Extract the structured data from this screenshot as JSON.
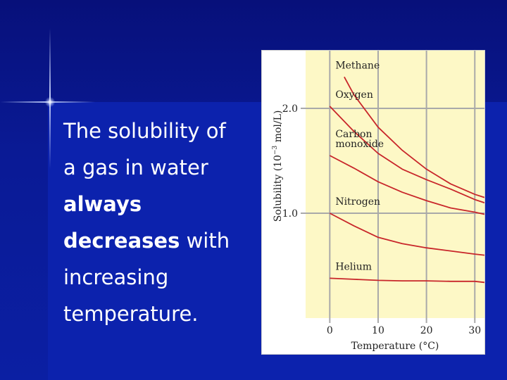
{
  "slide": {
    "text": {
      "line1": "The solubility of",
      "line2": "a gas in water",
      "line3": "always",
      "line4_bold": "decreases",
      "line4_rest": " with",
      "line5": "increasing",
      "line6": "temperature."
    }
  },
  "chart_data": {
    "type": "line",
    "xlabel": "Temperature (°C)",
    "ylabel_prefix": "Solubility (10",
    "ylabel_exp": "−3",
    "ylabel_suffix": " mol/L)",
    "xlim": [
      -5,
      32
    ],
    "ylim": [
      0,
      2.55
    ],
    "xticks": [
      0,
      10,
      20,
      30
    ],
    "yticks": [
      1.0,
      2.0
    ],
    "ytick_labels": [
      "1.0",
      "2.0"
    ],
    "grid": true,
    "colors": {
      "plot_bg": "#fdf8c6",
      "grid": "#a9a9a9",
      "curve": "#c8262a",
      "text": "#222222"
    },
    "series": [
      {
        "name": "Methane",
        "x": [
          3,
          5,
          10,
          15,
          20,
          25,
          30,
          32
        ],
        "y": [
          2.3,
          2.13,
          1.82,
          1.6,
          1.42,
          1.28,
          1.18,
          1.15
        ]
      },
      {
        "name": "Oxygen",
        "x": [
          0,
          5,
          10,
          15,
          20,
          25,
          30,
          32
        ],
        "y": [
          2.02,
          1.78,
          1.57,
          1.42,
          1.32,
          1.23,
          1.13,
          1.1
        ]
      },
      {
        "name": "Carbon\nmonoxide",
        "x": [
          0,
          5,
          10,
          15,
          20,
          25,
          30,
          32
        ],
        "y": [
          1.55,
          1.43,
          1.3,
          1.2,
          1.12,
          1.05,
          1.01,
          0.99
        ]
      },
      {
        "name": "Nitrogen",
        "x": [
          0,
          5,
          10,
          15,
          20,
          25,
          30,
          32
        ],
        "y": [
          1.0,
          0.88,
          0.77,
          0.71,
          0.67,
          0.64,
          0.61,
          0.6
        ]
      },
      {
        "name": "Helium",
        "x": [
          0,
          5,
          10,
          15,
          20,
          25,
          30,
          32
        ],
        "y": [
          0.38,
          0.37,
          0.36,
          0.355,
          0.355,
          0.35,
          0.35,
          0.34
        ]
      }
    ]
  }
}
